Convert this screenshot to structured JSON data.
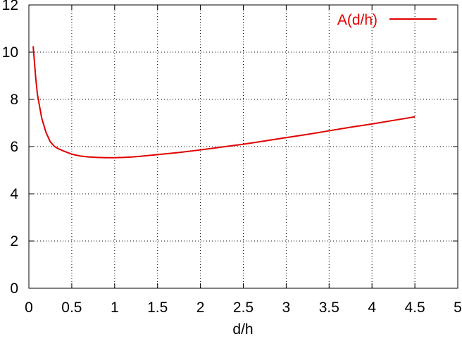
{
  "chart_data": {
    "type": "line",
    "title": "",
    "xlabel": "d/h",
    "ylabel": "",
    "xlim": [
      0,
      5
    ],
    "ylim": [
      0,
      12
    ],
    "xticks": [
      "0",
      "0.5",
      "1",
      "1.5",
      "2",
      "2.5",
      "3",
      "3.5",
      "4",
      "4.5",
      "5"
    ],
    "yticks": [
      "0",
      "2",
      "4",
      "6",
      "8",
      "10",
      "12"
    ],
    "grid": true,
    "legend_position": "top-right",
    "series": [
      {
        "name": "A(d/h)",
        "color": "#e00000",
        "x": [
          0.05,
          0.08,
          0.1,
          0.15,
          0.2,
          0.25,
          0.3,
          0.35,
          0.4,
          0.5,
          0.6,
          0.7,
          0.8,
          0.9,
          1.0,
          1.1,
          1.2,
          1.3,
          1.5,
          1.75,
          2.0,
          2.25,
          2.5,
          2.75,
          3.0,
          3.25,
          3.5,
          3.75,
          4.0,
          4.25,
          4.5
        ],
        "y": [
          10.25,
          8.9,
          8.2,
          7.2,
          6.6,
          6.2,
          6.0,
          5.9,
          5.82,
          5.68,
          5.6,
          5.56,
          5.54,
          5.53,
          5.53,
          5.54,
          5.56,
          5.59,
          5.66,
          5.75,
          5.86,
          5.98,
          6.1,
          6.24,
          6.38,
          6.52,
          6.67,
          6.82,
          6.96,
          7.11,
          7.26
        ]
      }
    ]
  }
}
